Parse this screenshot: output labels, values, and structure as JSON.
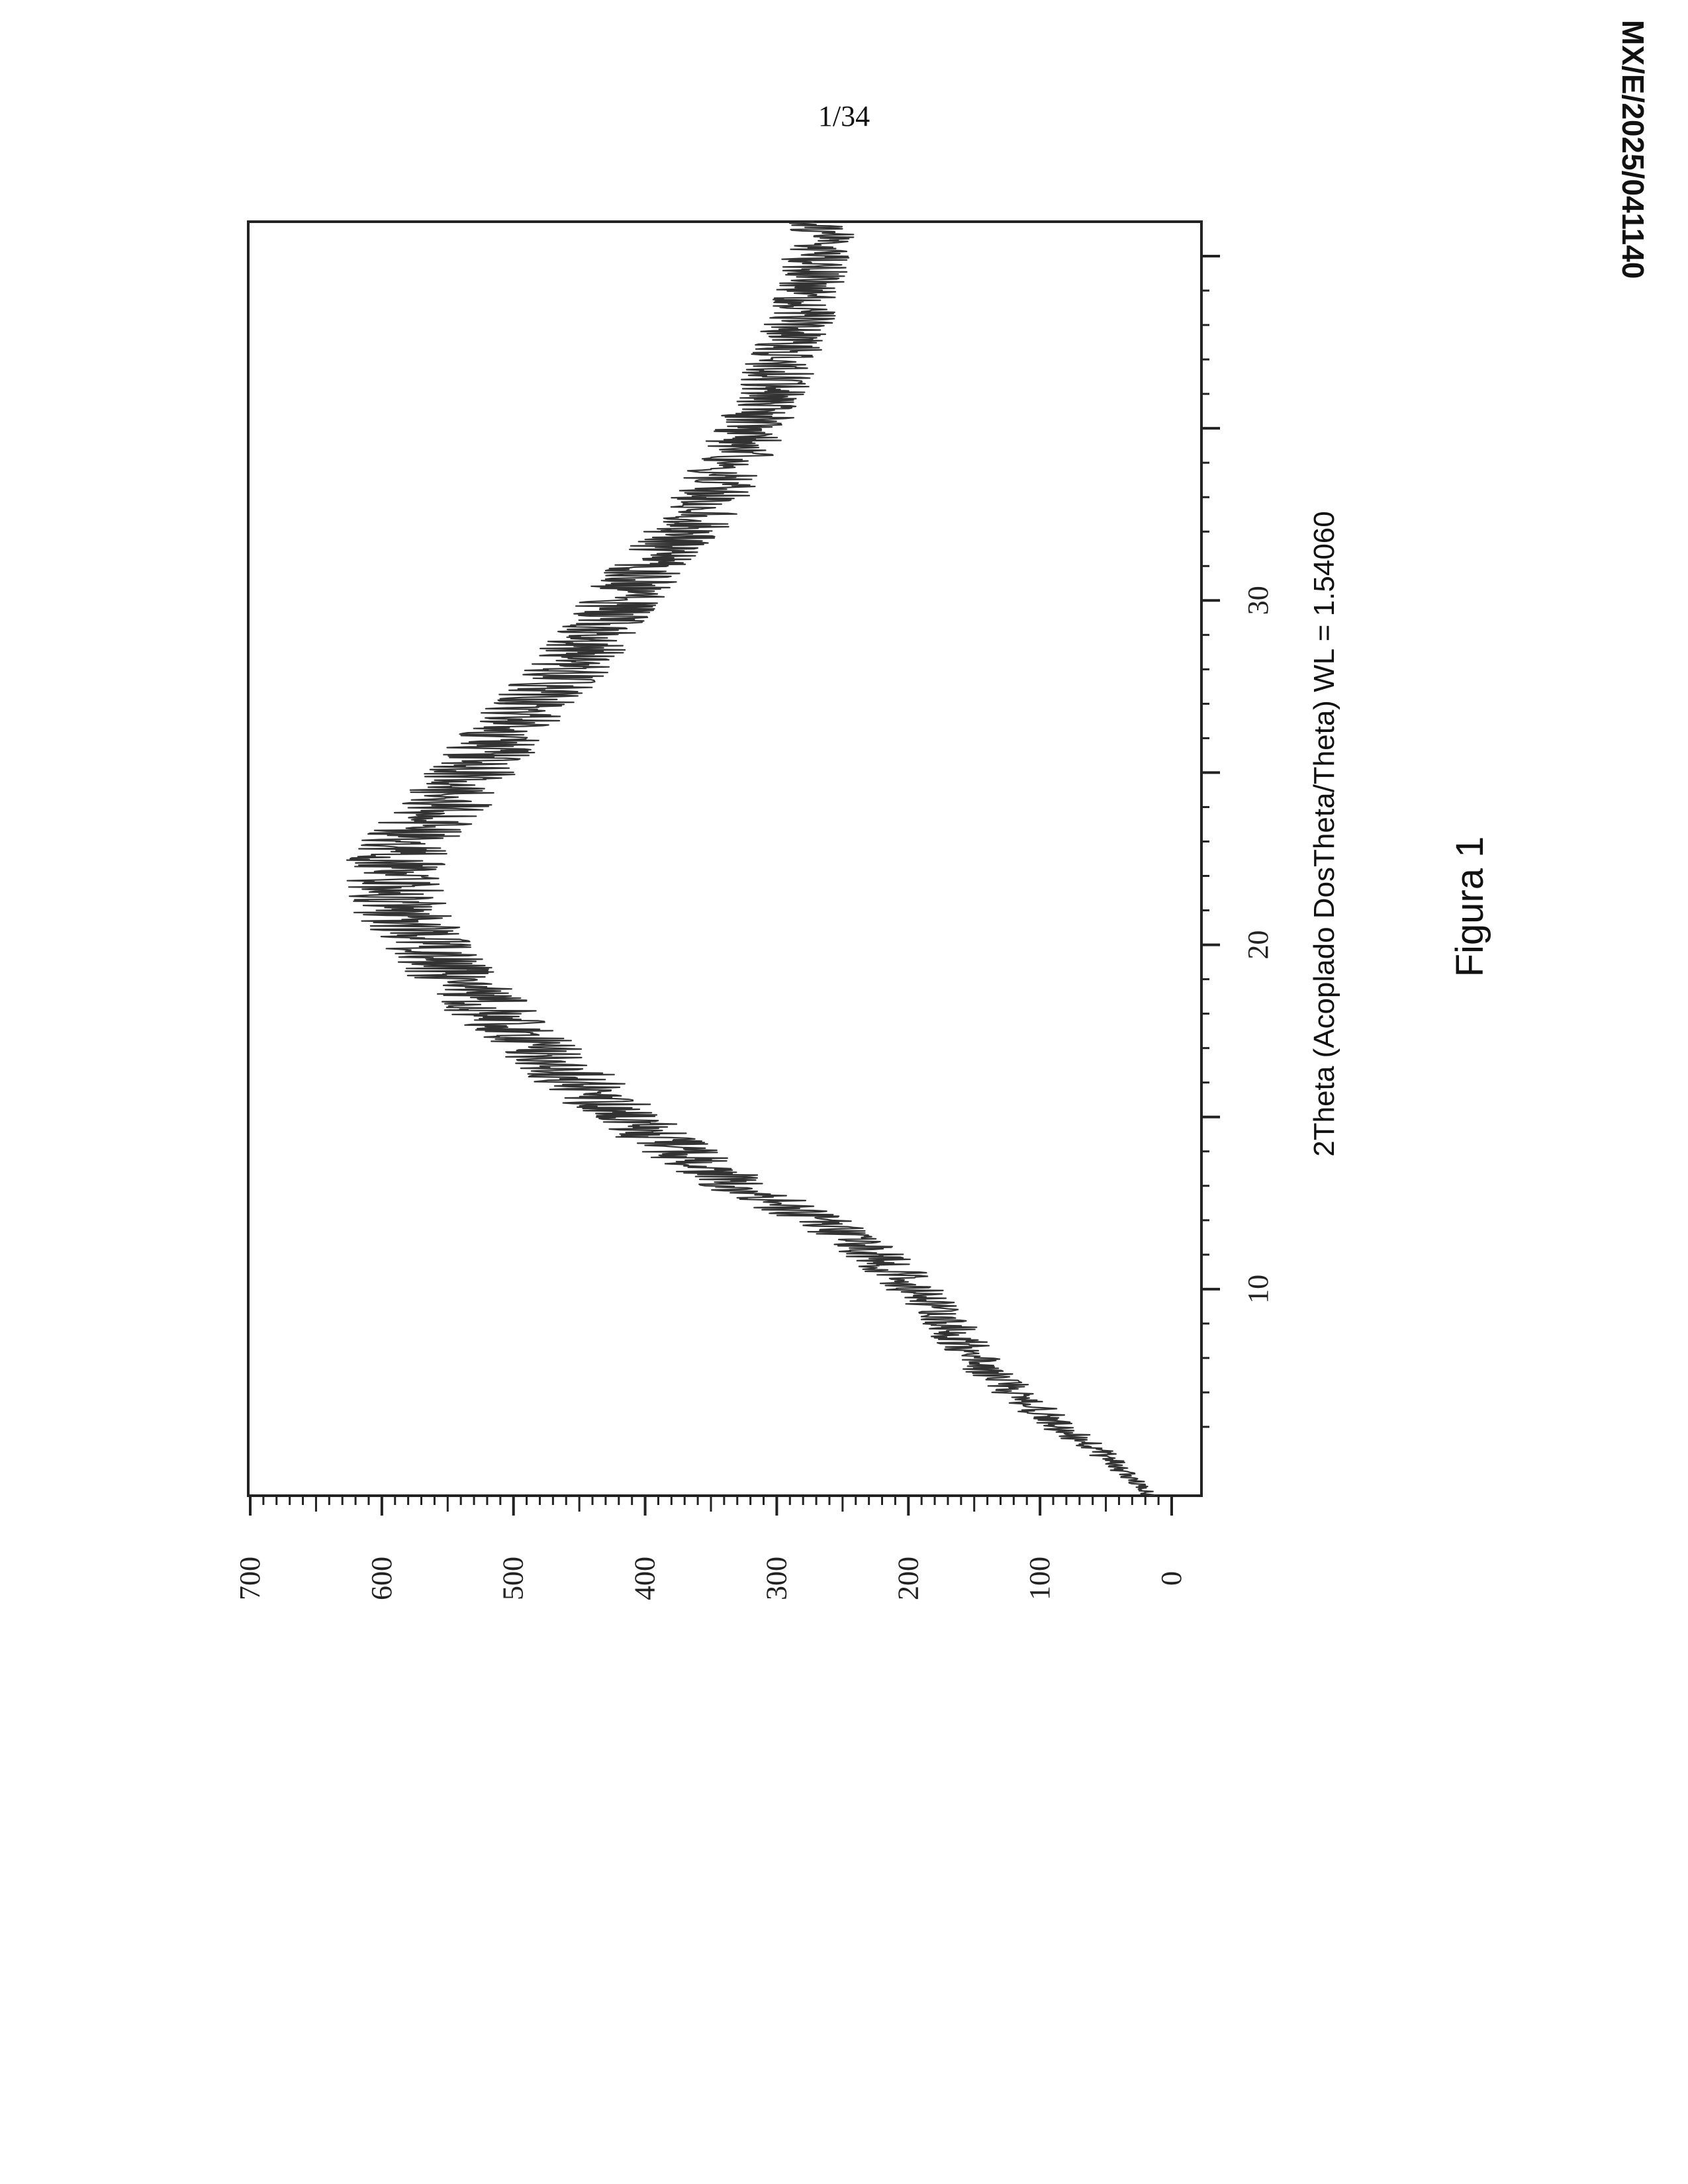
{
  "page": {
    "page_number": "1/34",
    "document_id": "MX/E/2025/041140"
  },
  "chart_data": {
    "type": "line",
    "title": "",
    "xlabel": "2Theta (Acoplado DosTheta/Theta) WL = 1.54060",
    "ylabel": "",
    "caption": "Figura 1",
    "xlim": [
      4,
      41
    ],
    "ylim": [
      0,
      700
    ],
    "x_ticks": [
      10,
      20,
      30
    ],
    "y_ticks": [
      0,
      100,
      200,
      300,
      400,
      500,
      600,
      700
    ],
    "grid": false,
    "legend": "none",
    "line_color": "#333333",
    "series": [
      {
        "x": [
          4,
          5,
          6,
          7,
          8,
          9,
          10,
          11,
          12,
          13,
          14,
          15,
          16,
          17,
          18,
          19,
          20,
          21,
          22,
          23,
          24,
          25,
          26,
          27,
          28,
          29,
          30,
          31,
          32,
          33,
          34,
          35,
          36,
          37,
          38,
          39,
          40,
          41
        ],
        "values": [
          15,
          45,
          85,
          120,
          150,
          170,
          195,
          225,
          270,
          330,
          375,
          415,
          450,
          480,
          515,
          545,
          570,
          585,
          595,
          580,
          555,
          535,
          510,
          485,
          460,
          440,
          420,
          395,
          370,
          350,
          335,
          320,
          305,
          295,
          285,
          275,
          270,
          265
        ]
      }
    ]
  }
}
